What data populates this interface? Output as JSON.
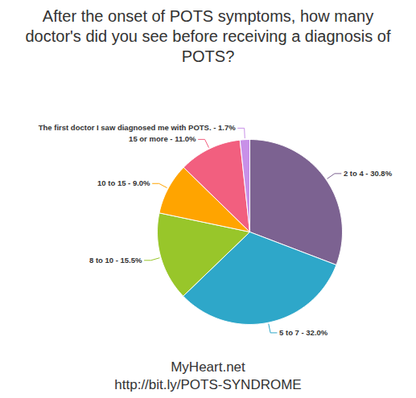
{
  "chart_data": {
    "type": "pie",
    "title": "After the onset of POTS symptoms, how many doctor's did you see before receiving a diagnosis of POTS?",
    "categories": [
      "2 to 4",
      "5 to 7",
      "8 to 10",
      "10 to 15",
      "15 or more",
      "The first doctor I saw diagnosed me with POTS."
    ],
    "values": [
      30.8,
      32.0,
      15.5,
      9.0,
      11.0,
      1.7
    ],
    "value_labels": [
      "2 to 4 - 30.8%",
      "5 to 7 - 32.0%",
      "8 to 10 - 15.5%",
      "10 to 15 - 9.0%",
      "15 or more - 11.0%",
      "The first doctor I saw diagnosed me with POTS. - 1.7%"
    ],
    "colors": [
      "#7c6291",
      "#2ea7c9",
      "#98c62a",
      "#ffa400",
      "#f25f7f",
      "#c890e8"
    ],
    "data_labels": true,
    "caption": [
      "MyHeart.net",
      "http://bit.ly/POTS-SYNDROME"
    ]
  }
}
